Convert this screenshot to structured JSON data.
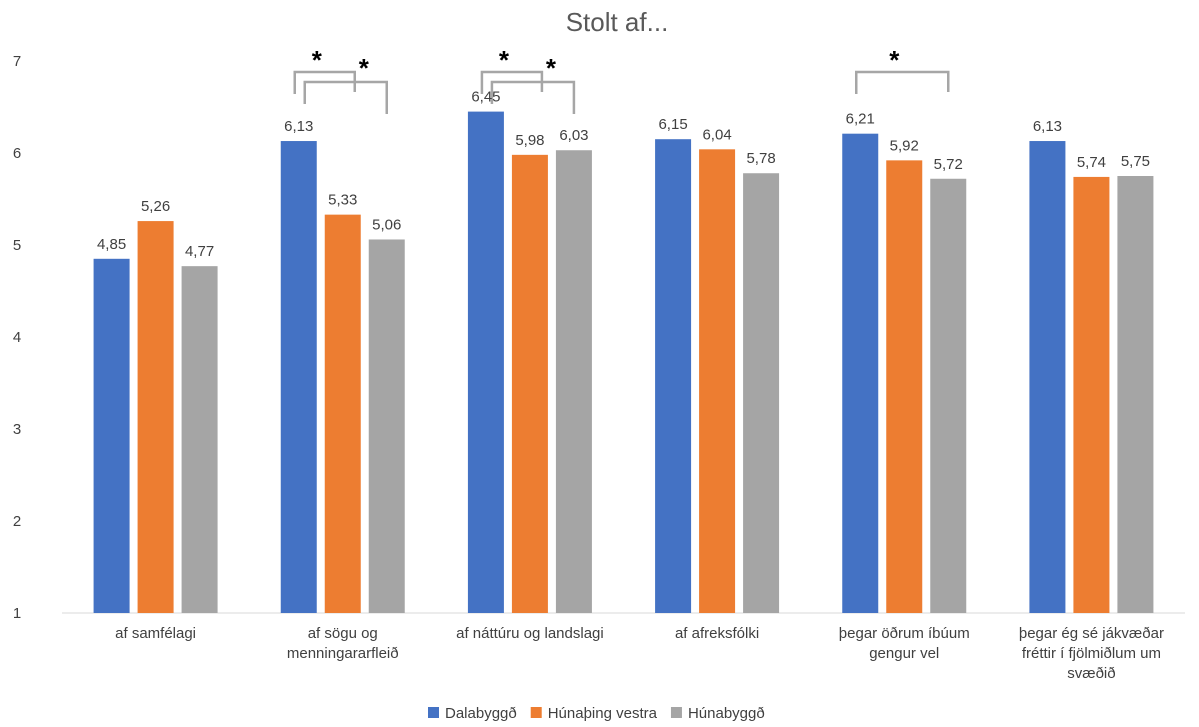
{
  "chart_data": {
    "type": "bar",
    "title": "Stolt af...",
    "categories": [
      [
        "af samfélagi"
      ],
      [
        "af sögu og",
        "menningararfleið"
      ],
      [
        "af náttúru og landslagi"
      ],
      [
        "af afreksfólki"
      ],
      [
        "þegar öðrum íbúum",
        "gengur vel"
      ],
      [
        "þegar ég sé jákvæðar",
        "fréttir í fjölmiðlum um",
        "svæðið"
      ]
    ],
    "series": [
      {
        "name": "Dalabyggð",
        "color": "#4472C4",
        "values": [
          4.85,
          6.13,
          6.45,
          6.15,
          6.21,
          6.13
        ],
        "labels": [
          "4,85",
          "6,13",
          "6,45",
          "6,15",
          "6,21",
          "6,13"
        ]
      },
      {
        "name": "Húnaþing vestra",
        "color": "#ED7D31",
        "values": [
          5.26,
          5.33,
          5.98,
          6.04,
          5.92,
          5.74
        ],
        "labels": [
          "5,26",
          "5,33",
          "5,98",
          "6,04",
          "5,92",
          "5,74"
        ]
      },
      {
        "name": "Húnabyggð",
        "color": "#A5A5A5",
        "values": [
          4.77,
          5.06,
          6.03,
          5.78,
          5.72,
          5.75
        ],
        "labels": [
          "4,77",
          "5,06",
          "6,03",
          "5,78",
          "5,72",
          "5,75"
        ]
      }
    ],
    "ylim": [
      1,
      7
    ],
    "yticks": [
      1,
      2,
      3,
      4,
      5,
      6,
      7
    ],
    "grid": false,
    "legend_position": "bottom",
    "significance": [
      {
        "category": 1,
        "from": 0,
        "to": 1,
        "marker": "*"
      },
      {
        "category": 1,
        "from": 0,
        "to": 2,
        "marker": "*"
      },
      {
        "category": 2,
        "from": 0,
        "to": 1,
        "marker": "*"
      },
      {
        "category": 2,
        "from": 0,
        "to": 2,
        "marker": "*"
      },
      {
        "category": 4,
        "from": 0,
        "to": 2,
        "marker": "*"
      }
    ]
  }
}
